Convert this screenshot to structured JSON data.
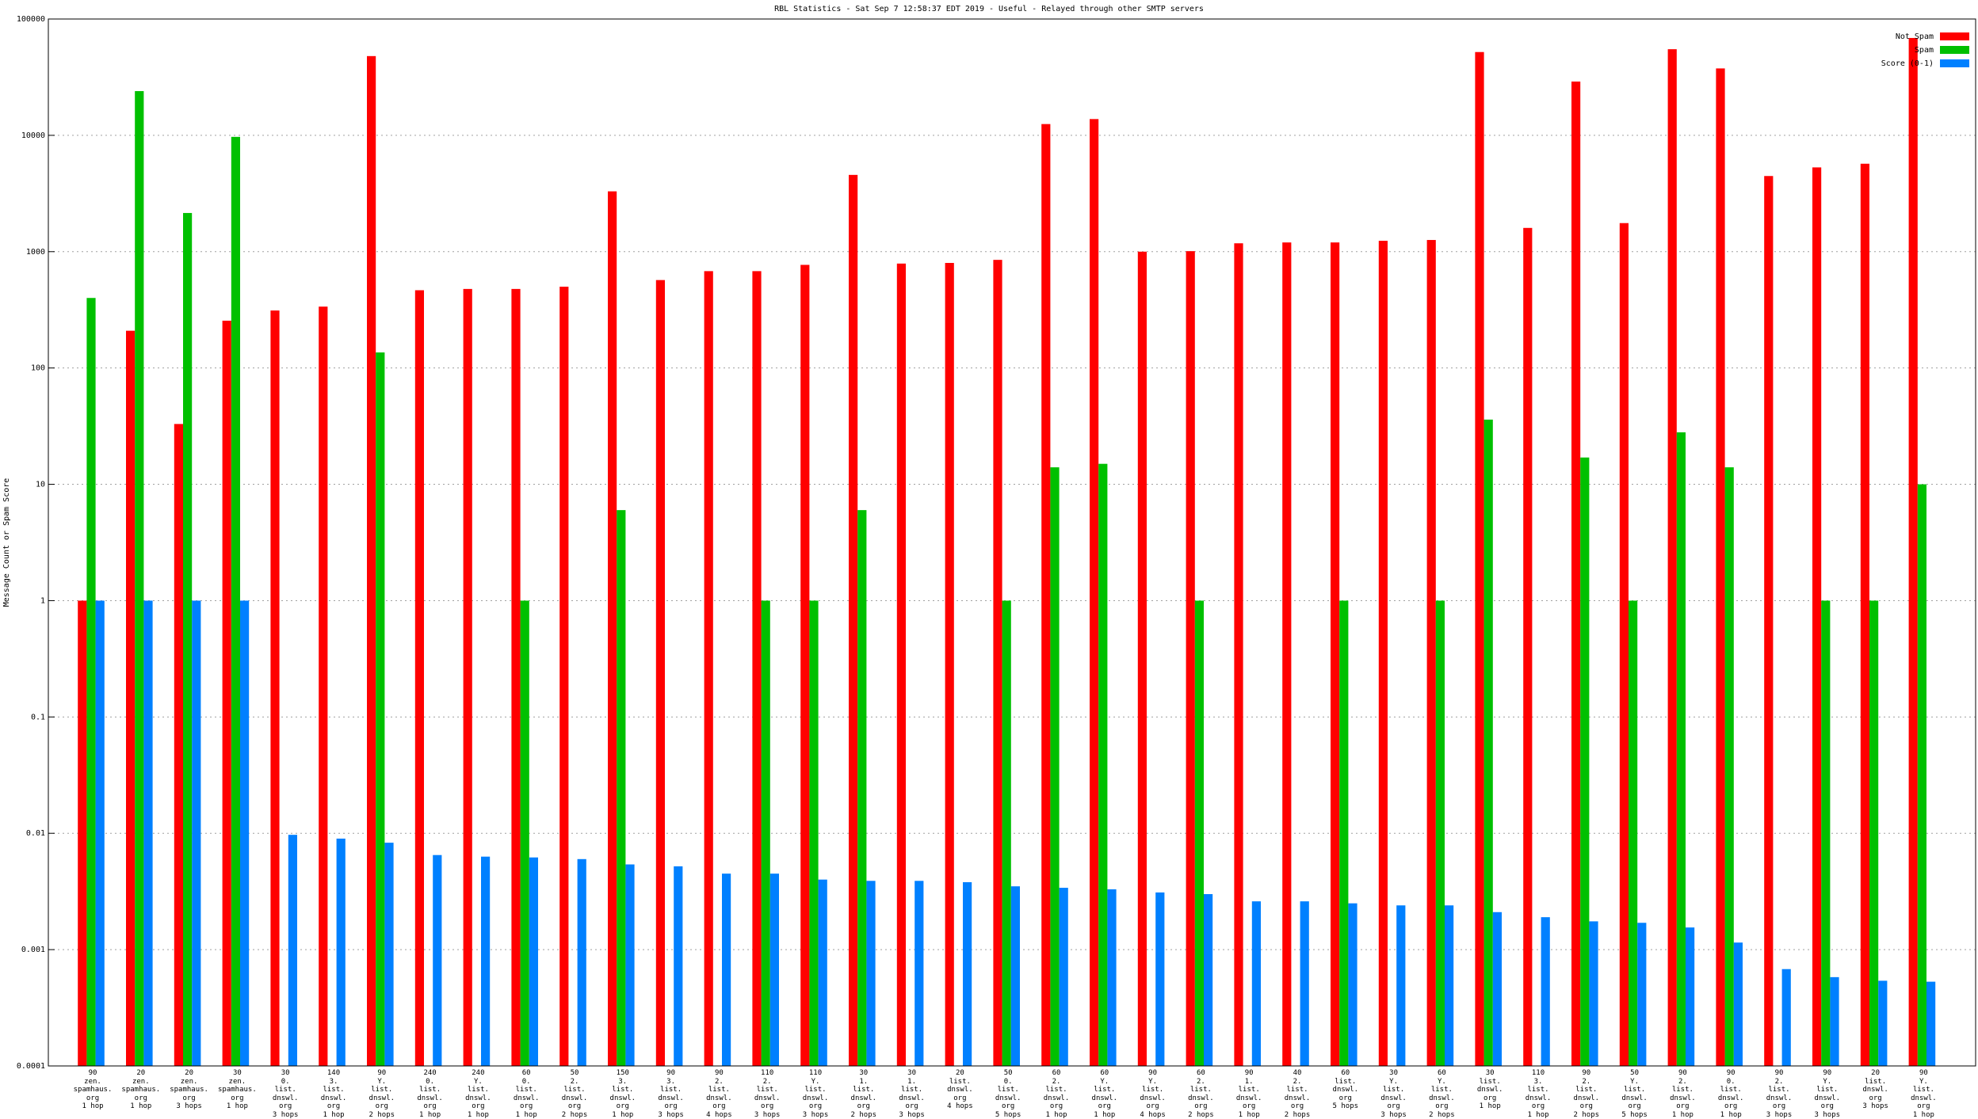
{
  "chart_data": {
    "type": "bar",
    "title": "RBL Statistics - Sat Sep  7 12:58:37 EDT 2019 - Useful - Relayed through other SMTP servers",
    "y_label": "Message Count or Spam Score",
    "log_scale": true,
    "grid": true,
    "legend_position": "top-right",
    "categories": [
      "90\nzen.\nspamhaus.\norg\n1 hop",
      "20\nzen.\nspamhaus.\norg\n1 hop",
      "20\nzen.\nspamhaus.\norg\n3 hops",
      "30\nzen.\nspamhaus.\norg\n1 hop",
      "30\n0.\nlist.\ndnswl.\norg\n3 hops",
      "140\n3.\nlist.\ndnswl.\norg\n1 hop",
      "90\nY.\nlist.\ndnswl.\norg\n2 hops",
      "240\n0.\nlist.\ndnswl.\norg\n1 hop",
      "240\nY.\nlist.\ndnswl.\norg\n1 hop",
      "60\n0.\nlist.\ndnswl.\norg\n1 hop",
      "50\n2.\nlist.\ndnswl.\norg\n2 hops",
      "150\n3.\nlist.\ndnswl.\norg\n1 hop",
      "90\n3.\nlist.\ndnswl.\norg\n3 hops",
      "90\n2.\nlist.\ndnswl.\norg\n4 hops",
      "110\n2.\nlist.\ndnswl.\norg\n3 hops",
      "110\nY.\nlist.\ndnswl.\norg\n3 hops",
      "30\n1.\nlist.\ndnswl.\norg\n2 hops",
      "30\n1.\nlist.\ndnswl.\norg\n3 hops",
      "20\nlist.\ndnswl.\norg\n4 hops",
      "50\n0.\nlist.\ndnswl.\norg\n5 hops",
      "60\n2.\nlist.\ndnswl.\norg\n1 hop",
      "60\nY.\nlist.\ndnswl.\norg\n1 hop",
      "90\nY.\nlist.\ndnswl.\norg\n4 hops",
      "60\n2.\nlist.\ndnswl.\norg\n2 hops",
      "90\n1.\nlist.\ndnswl.\norg\n1 hop",
      "40\n2.\nlist.\ndnswl.\norg\n2 hops",
      "60\nlist.\ndnswl.\norg\n5 hops",
      "30\nY.\nlist.\ndnswl.\norg\n3 hops",
      "60\nY.\nlist.\ndnswl.\norg\n2 hops",
      "30\nlist.\ndnswl.\norg\n1 hop",
      "110\n3.\nlist.\ndnswl.\norg\n1 hop",
      "90\n2.\nlist.\ndnswl.\norg\n2 hops",
      "50\nY.\nlist.\ndnswl.\norg\n5 hops",
      "90\n2.\nlist.\ndnswl.\norg\n1 hop",
      "90\n0.\nlist.\ndnswl.\norg\n1 hop",
      "90\n2.\nlist.\ndnswl.\norg\n3 hops",
      "90\nY.\nlist.\ndnswl.\norg\n3 hops",
      "20\nlist.\ndnswl.\norg\n3 hops",
      "90\nY.\nlist.\ndnswl.\norg\n1 hop"
    ],
    "series": [
      {
        "name": "Not Spam",
        "color": "#ff0000",
        "values": [
          1,
          209,
          33,
          255,
          312,
          337,
          48000,
          466,
          478,
          478,
          500,
          3300,
          570,
          680,
          680,
          770,
          4570,
          790,
          800,
          850,
          12500,
          13800,
          1000,
          1010,
          1180,
          1200,
          1200,
          1240,
          1260,
          52000,
          1600,
          29000,
          1760,
          55000,
          37600,
          4470,
          5300,
          5700,
          68700
        ]
      },
      {
        "name": "Spam",
        "color": "#00c000",
        "values": [
          400,
          24000,
          2150,
          9700,
          null,
          null,
          136,
          null,
          null,
          1,
          null,
          6,
          null,
          null,
          1,
          1,
          6,
          null,
          null,
          1,
          14,
          15,
          null,
          1,
          null,
          null,
          1,
          null,
          1,
          36,
          null,
          17,
          1,
          28,
          14,
          null,
          1,
          1,
          10
        ]
      },
      {
        "name": "Score (0-1)",
        "color": "#0080ff",
        "values": [
          1,
          1,
          1,
          1,
          0.0097,
          0.009,
          0.0083,
          0.0065,
          0.0063,
          0.0062,
          0.006,
          0.0054,
          0.0052,
          0.0045,
          0.0045,
          0.004,
          0.0039,
          0.0039,
          0.0038,
          0.0035,
          0.0034,
          0.0033,
          0.0031,
          0.003,
          0.0026,
          0.0026,
          0.0025,
          0.0024,
          0.0024,
          0.0021,
          0.0019,
          0.00175,
          0.0017,
          0.00155,
          0.00115,
          0.00068,
          0.00058,
          0.00054,
          0.00053
        ]
      }
    ],
    "ylim": [
      {
        "value": 0.0001,
        "label": "0.0001"
      },
      100000
    ],
    "yticks": [
      {
        "value": 0.0001,
        "label": "0.0001"
      },
      0.001,
      0.01,
      0.1,
      1,
      10,
      100,
      1000,
      10000,
      100000
    ]
  }
}
